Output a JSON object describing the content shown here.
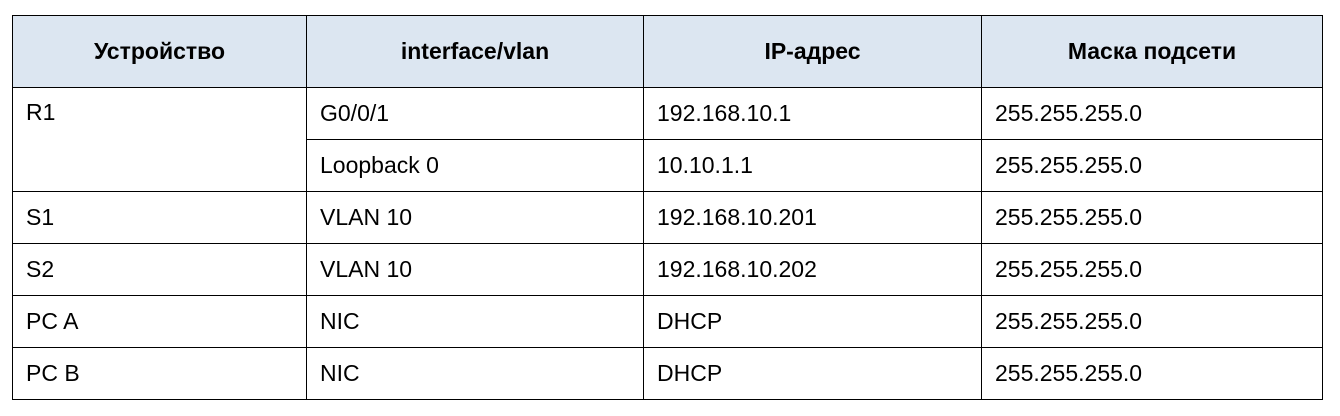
{
  "table": {
    "headers": [
      "Устройство",
      "interface/vlan",
      "IP-адрес",
      "Маска подсети"
    ],
    "rows": [
      {
        "device": "R1",
        "interface": "G0/0/1",
        "ip": "192.168.10.1",
        "mask": "255.255.255.0"
      },
      {
        "device": "",
        "interface": "Loopback 0",
        "ip": "10.10.1.1",
        "mask": "255.255.255.0"
      },
      {
        "device": "S1",
        "interface": "VLAN 10",
        "ip": "192.168.10.201",
        "mask": "255.255.255.0"
      },
      {
        "device": "S2",
        "interface": "VLAN 10",
        "ip": "192.168.10.202",
        "mask": "255.255.255.0"
      },
      {
        "device": "PC A",
        "interface": "NIC",
        "ip": "DHCP",
        "mask": "255.255.255.0"
      },
      {
        "device": "PC B",
        "interface": "NIC",
        "ip": "DHCP",
        "mask": "255.255.255.0"
      }
    ]
  },
  "colors": {
    "header_background": "#dce6f1",
    "border": "#000000",
    "text": "#000000"
  }
}
